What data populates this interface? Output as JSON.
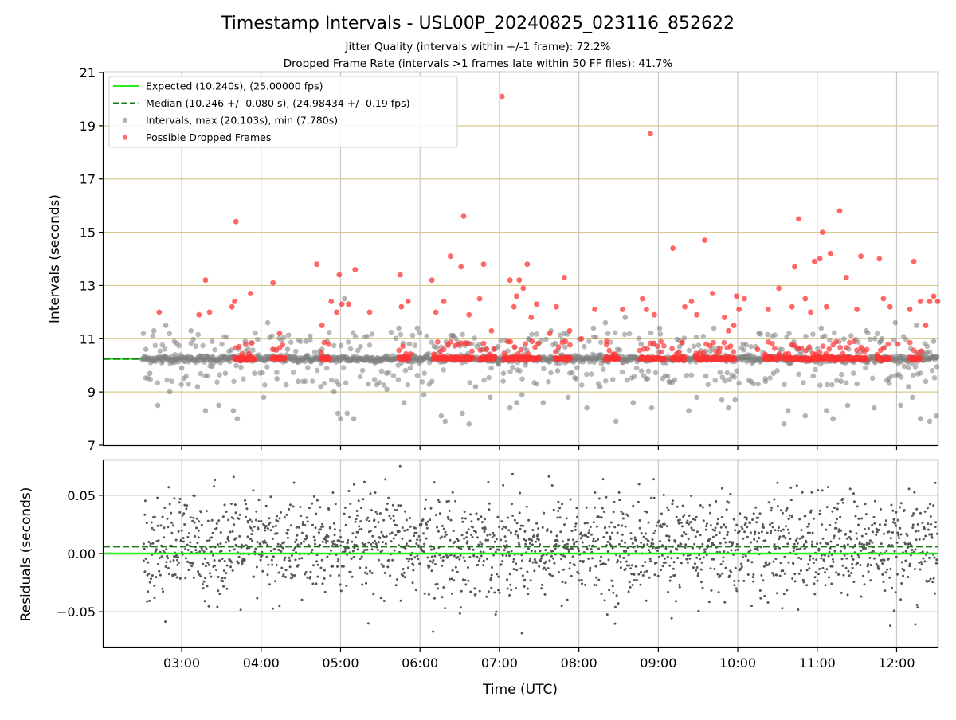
{
  "figure": {
    "title": "Timestamp Intervals - USL00P_20240825_023116_852622",
    "subtitle_1": "Jitter Quality (intervals within +/-1 frame): 72.2%",
    "subtitle_2": "Dropped Frame Rate (intervals >1 frames late within 50 FF files): 41.7%",
    "xlabel": "Time (UTC)",
    "x_tick_labels": [
      "03:00",
      "04:00",
      "05:00",
      "06:00",
      "07:00",
      "08:00",
      "09:00",
      "10:00",
      "11:00",
      "12:00"
    ]
  },
  "colors": {
    "expected": "#22ee22",
    "median": "#1a7a1a",
    "intervals": "#808080",
    "dropped": "#ff3333",
    "residuals": "#555555",
    "y_grid": "#d8c88c",
    "x_grid": "#c8c8c8"
  },
  "chart_data": [
    {
      "type": "scatter",
      "panel": "top",
      "ylabel": "Intervals (seconds)",
      "ylim": [
        7,
        21
      ],
      "xlim": [
        "02:01",
        "12:31"
      ],
      "y_ticks": [
        7,
        9,
        11,
        13,
        15,
        17,
        19,
        21
      ],
      "y_tick_labels": [
        "7",
        "9",
        "11",
        "13",
        "15",
        "17",
        "19",
        "21"
      ],
      "x_ticks": [
        "03:00",
        "04:00",
        "05:00",
        "06:00",
        "07:00",
        "08:00",
        "09:00",
        "10:00",
        "11:00",
        "12:00"
      ],
      "grid": {
        "x": true,
        "y": true
      },
      "legend": {
        "placement": "upper-left",
        "entries": [
          {
            "label": "Expected (10.240s), (25.00000 fps)",
            "kind": "line",
            "style": "solid",
            "color": "#22ee22"
          },
          {
            "label": "Median (10.246 +/- 0.080 s), (24.98434 +/- 0.19 fps)",
            "kind": "line",
            "style": "dashed",
            "color": "#1a7a1a"
          },
          {
            "label": "Intervals, max (20.103s), min (7.780s)",
            "kind": "marker",
            "color": "#808080"
          },
          {
            "label": "Possible Dropped Frames",
            "kind": "marker",
            "color": "#ff3333"
          }
        ]
      },
      "reference_lines": {
        "expected": 10.24,
        "median": 10.246
      },
      "series": [
        {
          "name": "Intervals, max (20.103s), min (7.780s)",
          "color": "#808080",
          "points": [
            [
              "02:30",
              10.24
            ],
            [
              "02:33",
              10.6
            ],
            [
              "02:36",
              9.7
            ],
            [
              "02:39",
              11.3
            ],
            [
              "02:42",
              8.5
            ],
            [
              "02:45",
              10.1
            ],
            [
              "02:48",
              11.5
            ],
            [
              "02:51",
              9.0
            ],
            [
              "02:55",
              10.4
            ],
            [
              "03:00",
              9.9
            ],
            [
              "03:07",
              11.3
            ],
            [
              "03:12",
              9.2
            ],
            [
              "03:18",
              8.3
            ],
            [
              "03:23",
              10.9
            ],
            [
              "03:28",
              8.5
            ],
            [
              "03:33",
              9.7
            ],
            [
              "03:39",
              8.3
            ],
            [
              "03:42",
              8.0
            ],
            [
              "03:48",
              10.9
            ],
            [
              "03:55",
              9.7
            ],
            [
              "04:02",
              8.8
            ],
            [
              "04:05",
              11.6
            ],
            [
              "04:12",
              9.5
            ],
            [
              "04:20",
              10.6
            ],
            [
              "04:28",
              9.4
            ],
            [
              "04:34",
              10.9
            ],
            [
              "04:37",
              11.1
            ],
            [
              "04:45",
              9.2
            ],
            [
              "04:50",
              10.9
            ],
            [
              "04:55",
              9.0
            ],
            [
              "04:58",
              8.2
            ],
            [
              "05:00",
              8.0
            ],
            [
              "05:03",
              12.5
            ],
            [
              "05:05",
              8.2
            ],
            [
              "05:10",
              8.0
            ],
            [
              "05:15",
              10.7
            ],
            [
              "05:21",
              9.3
            ],
            [
              "05:30",
              10.2
            ],
            [
              "05:35",
              9.1
            ],
            [
              "05:44",
              11.4
            ],
            [
              "05:48",
              8.6
            ],
            [
              "05:52",
              10.8
            ],
            [
              "05:58",
              11.4
            ],
            [
              "06:03",
              8.9
            ],
            [
              "06:09",
              9.4
            ],
            [
              "06:16",
              8.1
            ],
            [
              "06:19",
              7.9
            ],
            [
              "06:25",
              11.1
            ],
            [
              "06:32",
              8.2
            ],
            [
              "06:37",
              7.8
            ],
            [
              "06:42",
              9.2
            ],
            [
              "06:48",
              10.6
            ],
            [
              "06:53",
              8.8
            ],
            [
              "06:59",
              10.1
            ],
            [
              "07:03",
              9.7
            ],
            [
              "07:08",
              8.4
            ],
            [
              "07:13",
              8.6
            ],
            [
              "07:17",
              8.9
            ],
            [
              "07:22",
              11.0
            ],
            [
              "07:28",
              9.3
            ],
            [
              "07:33",
              8.6
            ],
            [
              "07:39",
              11.3
            ],
            [
              "07:44",
              9.8
            ],
            [
              "07:49",
              11.2
            ],
            [
              "07:52",
              8.8
            ],
            [
              "07:58",
              9.5
            ],
            [
              "08:06",
              8.4
            ],
            [
              "08:11",
              11.4
            ],
            [
              "08:16",
              9.2
            ],
            [
              "08:20",
              11.6
            ],
            [
              "08:28",
              7.9
            ],
            [
              "08:35",
              11.8
            ],
            [
              "08:41",
              8.6
            ],
            [
              "08:47",
              10.8
            ],
            [
              "08:52",
              9.5
            ],
            [
              "08:55",
              8.4
            ],
            [
              "09:01",
              11.4
            ],
            [
              "09:08",
              9.4
            ],
            [
              "09:16",
              10.7
            ],
            [
              "09:23",
              8.3
            ],
            [
              "09:29",
              8.8
            ],
            [
              "09:36",
              9.6
            ],
            [
              "09:42",
              11.4
            ],
            [
              "09:48",
              8.7
            ],
            [
              "09:53",
              8.4
            ],
            [
              "09:58",
              8.7
            ],
            [
              "10:04",
              10.8
            ],
            [
              "10:10",
              9.4
            ],
            [
              "10:16",
              11.2
            ],
            [
              "10:21",
              9.4
            ],
            [
              "10:27",
              9.7
            ],
            [
              "10:35",
              7.8
            ],
            [
              "10:38",
              8.3
            ],
            [
              "10:45",
              10.6
            ],
            [
              "10:51",
              8.1
            ],
            [
              "10:57",
              9.6
            ],
            [
              "11:03",
              11.4
            ],
            [
              "11:07",
              8.3
            ],
            [
              "11:12",
              8.0
            ],
            [
              "11:18",
              9.4
            ],
            [
              "11:23",
              8.5
            ],
            [
              "11:30",
              9.3
            ],
            [
              "11:37",
              11.3
            ],
            [
              "11:43",
              8.4
            ],
            [
              "11:48",
              10.9
            ],
            [
              "11:54",
              9.5
            ],
            [
              "11:59",
              11.6
            ],
            [
              "12:03",
              8.5
            ],
            [
              "12:09",
              9.2
            ],
            [
              "12:12",
              8.8
            ],
            [
              "12:15",
              11.5
            ],
            [
              "12:18",
              8.0
            ],
            [
              "12:22",
              9.4
            ],
            [
              "12:25",
              7.9
            ],
            [
              "12:28",
              10.9
            ],
            [
              "12:30",
              8.1
            ]
          ]
        },
        {
          "name": "Possible Dropped Frames",
          "color": "#ff3333",
          "points": [
            [
              "02:43",
              12.0
            ],
            [
              "03:13",
              11.9
            ],
            [
              "03:18",
              13.2
            ],
            [
              "03:21",
              12.0
            ],
            [
              "03:38",
              12.2
            ],
            [
              "03:40",
              12.4
            ],
            [
              "03:41",
              15.4
            ],
            [
              "03:52",
              12.7
            ],
            [
              "04:09",
              13.1
            ],
            [
              "04:14",
              11.2
            ],
            [
              "04:42",
              13.8
            ],
            [
              "04:46",
              11.5
            ],
            [
              "04:53",
              12.4
            ],
            [
              "04:57",
              12.0
            ],
            [
              "04:59",
              13.4
            ],
            [
              "05:01",
              12.3
            ],
            [
              "05:06",
              12.3
            ],
            [
              "05:11",
              13.6
            ],
            [
              "05:22",
              12.0
            ],
            [
              "05:45",
              13.4
            ],
            [
              "05:46",
              12.2
            ],
            [
              "05:51",
              12.4
            ],
            [
              "06:09",
              13.2
            ],
            [
              "06:12",
              12.0
            ],
            [
              "06:18",
              12.4
            ],
            [
              "06:23",
              14.1
            ],
            [
              "06:31",
              13.7
            ],
            [
              "06:33",
              15.6
            ],
            [
              "06:37",
              11.9
            ],
            [
              "06:45",
              12.5
            ],
            [
              "06:48",
              13.8
            ],
            [
              "06:54",
              11.3
            ],
            [
              "07:08",
              13.2
            ],
            [
              "07:11",
              12.2
            ],
            [
              "07:13",
              12.6
            ],
            [
              "07:15",
              13.2
            ],
            [
              "07:18",
              12.9
            ],
            [
              "07:21",
              13.8
            ],
            [
              "07:24",
              11.8
            ],
            [
              "07:28",
              12.3
            ],
            [
              "07:38",
              11.2
            ],
            [
              "07:43",
              12.2
            ],
            [
              "07:49",
              13.3
            ],
            [
              "07:53",
              11.3
            ],
            [
              "08:02",
              11.0
            ],
            [
              "08:12",
              12.1
            ],
            [
              "08:21",
              10.9
            ],
            [
              "08:33",
              12.1
            ],
            [
              "08:48",
              12.5
            ],
            [
              "08:51",
              12.1
            ],
            [
              "08:54",
              18.7
            ],
            [
              "08:57",
              11.9
            ],
            [
              "09:02",
              10.5
            ],
            [
              "09:11",
              14.4
            ],
            [
              "09:20",
              12.2
            ],
            [
              "09:25",
              12.4
            ],
            [
              "09:29",
              11.9
            ],
            [
              "09:35",
              14.7
            ],
            [
              "09:41",
              12.7
            ],
            [
              "09:46",
              10.5
            ],
            [
              "09:50",
              11.8
            ],
            [
              "09:53",
              11.3
            ],
            [
              "09:57",
              11.5
            ],
            [
              "09:59",
              12.6
            ],
            [
              "10:01",
              12.1
            ],
            [
              "10:05",
              12.5
            ],
            [
              "10:15",
              10.6
            ],
            [
              "10:23",
              12.1
            ],
            [
              "10:31",
              12.9
            ],
            [
              "10:41",
              12.2
            ],
            [
              "10:43",
              13.7
            ],
            [
              "10:46",
              15.5
            ],
            [
              "10:51",
              12.5
            ],
            [
              "10:55",
              12.0
            ],
            [
              "10:58",
              13.9
            ],
            [
              "11:02",
              14.0
            ],
            [
              "11:04",
              15.0
            ],
            [
              "11:07",
              12.2
            ],
            [
              "11:10",
              14.2
            ],
            [
              "11:17",
              15.8
            ],
            [
              "11:22",
              13.3
            ],
            [
              "11:30",
              12.1
            ],
            [
              "11:33",
              14.1
            ],
            [
              "11:47",
              14.0
            ],
            [
              "11:50",
              12.5
            ],
            [
              "11:55",
              12.2
            ],
            [
              "12:01",
              10.8
            ],
            [
              "12:10",
              12.1
            ],
            [
              "12:13",
              13.9
            ],
            [
              "12:18",
              12.4
            ],
            [
              "12:22",
              11.5
            ],
            [
              "12:25",
              12.4
            ],
            [
              "12:28",
              12.6
            ],
            [
              "12:31",
              12.4
            ]
          ],
          "clusters": [
            [
              "03:40",
              "03:55"
            ],
            [
              "04:08",
              "04:18"
            ],
            [
              "04:45",
              "04:52"
            ],
            [
              "05:44",
              "05:52"
            ],
            [
              "06:10",
              "06:40"
            ],
            [
              "06:45",
              "06:57"
            ],
            [
              "07:03",
              "07:30"
            ],
            [
              "07:42",
              "07:54"
            ],
            [
              "08:20",
              "08:30"
            ],
            [
              "08:46",
              "09:05"
            ],
            [
              "09:10",
              "09:20"
            ],
            [
              "09:28",
              "09:58"
            ],
            [
              "10:20",
              "10:32"
            ],
            [
              "10:35",
              "11:38"
            ],
            [
              "11:45",
              "11:55"
            ],
            [
              "12:10",
              "12:18"
            ]
          ],
          "cluster_value": 10.26
        }
      ]
    },
    {
      "type": "scatter",
      "panel": "bottom",
      "ylabel": "Residuals (seconds)",
      "xlabel": "Time (UTC)",
      "ylim": [
        -0.08,
        0.08
      ],
      "xlim": [
        "02:01",
        "12:31"
      ],
      "y_ticks": [
        -0.05,
        0.0,
        0.05
      ],
      "y_tick_labels": [
        "−0.05",
        "0.00",
        "0.05"
      ],
      "x_ticks": [
        "03:00",
        "04:00",
        "05:00",
        "06:00",
        "07:00",
        "08:00",
        "09:00",
        "10:00",
        "11:00",
        "12:00"
      ],
      "grid": {
        "x": true,
        "y": true
      },
      "reference_lines": {
        "expected": 0.0,
        "median": 0.006
      },
      "series": [
        {
          "name": "Residuals",
          "color": "#555555",
          "time_range": [
            "02:31",
            "12:31"
          ],
          "count": 2000,
          "spread_sd": 0.022,
          "bounds": [
            -0.08,
            0.08
          ]
        }
      ]
    }
  ]
}
